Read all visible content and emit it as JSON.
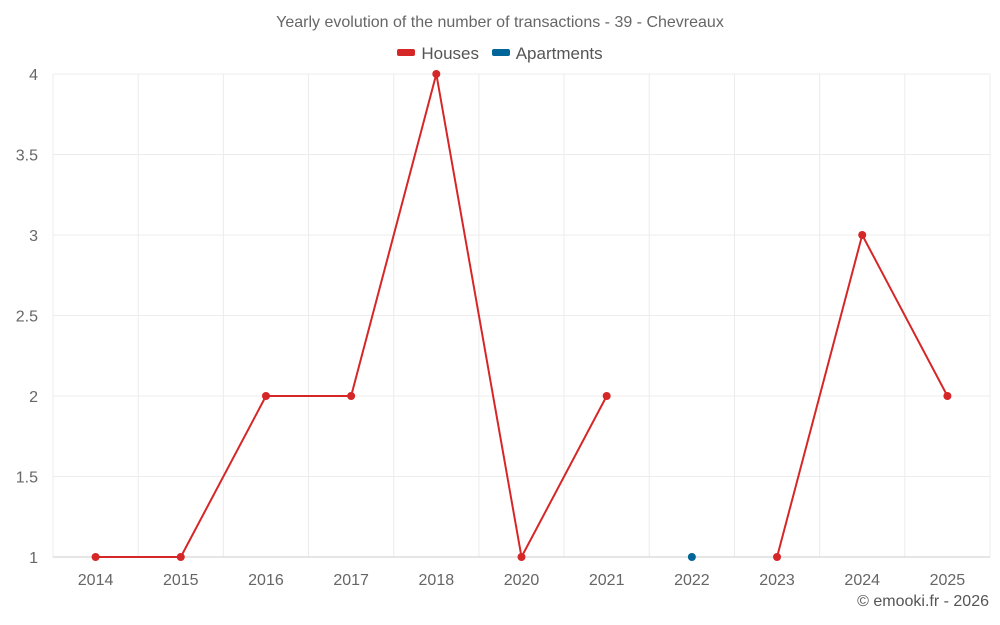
{
  "chart_data": {
    "type": "line",
    "title": "Yearly evolution of the number of transactions - 39 - Chevreaux",
    "categories": [
      "2014",
      "2015",
      "2016",
      "2017",
      "2018",
      "2020",
      "2021",
      "2022",
      "2023",
      "2024",
      "2025"
    ],
    "series": [
      {
        "name": "Houses",
        "color": "#d62728",
        "values": [
          1,
          1,
          2,
          2,
          4,
          1,
          2,
          null,
          1,
          3,
          2
        ]
      },
      {
        "name": "Apartments",
        "color": "#006699",
        "values": [
          null,
          null,
          null,
          null,
          null,
          null,
          null,
          1,
          null,
          null,
          null
        ]
      }
    ],
    "xlabel": "",
    "ylabel": "",
    "ylim": [
      1,
      4
    ],
    "yticks": [
      "1",
      "1.5",
      "2",
      "2.5",
      "3",
      "3.5",
      "4"
    ],
    "grid": true,
    "legend_position": "top-center"
  },
  "footer": {
    "credit": "© emooki.fr - 2026"
  }
}
